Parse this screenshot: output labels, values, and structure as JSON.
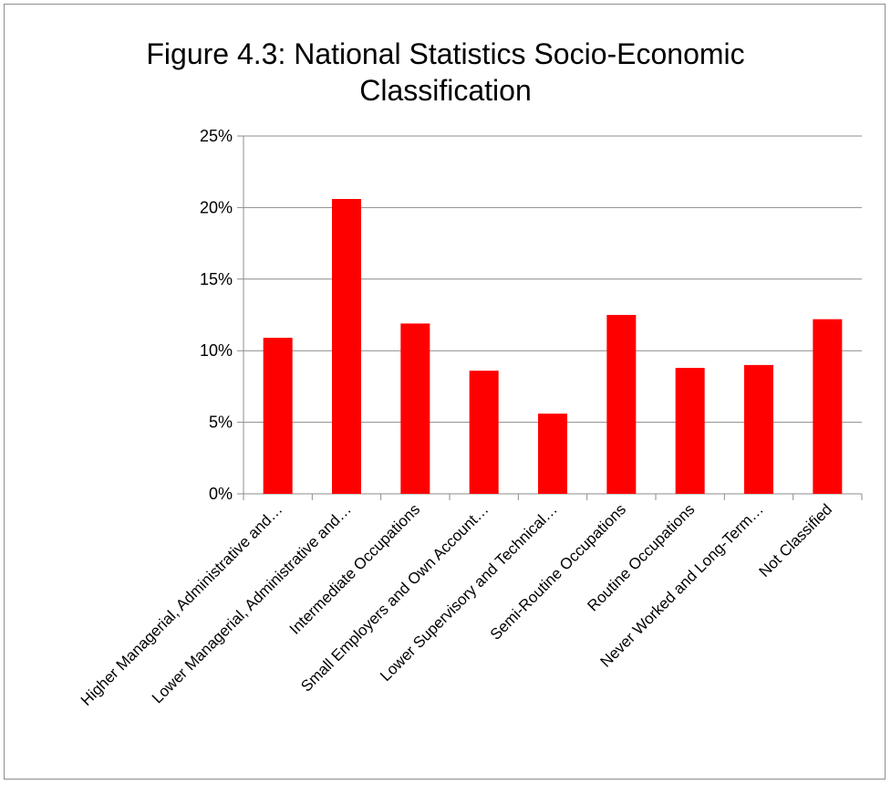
{
  "chart_data": {
    "type": "bar",
    "title": "Figure 4.3: National Statistics Socio-Economic Classification",
    "xlabel": "",
    "ylabel": "",
    "ylim": [
      0,
      25
    ],
    "yticks": [
      "0%",
      "5%",
      "10%",
      "15%",
      "20%",
      "25%"
    ],
    "categories": [
      "Higher Managerial, Administrative and…",
      "Lower Managerial, Administrative and…",
      "Intermediate Occupations",
      "Small Employers and Own Account…",
      "Lower Supervisory and Technical…",
      "Semi-Routine Occupations",
      "Routine Occupations",
      "Never Worked and Long-Term…",
      "Not Classified"
    ],
    "values": [
      10.9,
      20.6,
      11.9,
      8.6,
      5.6,
      12.5,
      8.8,
      9.0,
      12.2
    ],
    "bar_color": "#ff0000",
    "grid": true,
    "legend": "none"
  }
}
